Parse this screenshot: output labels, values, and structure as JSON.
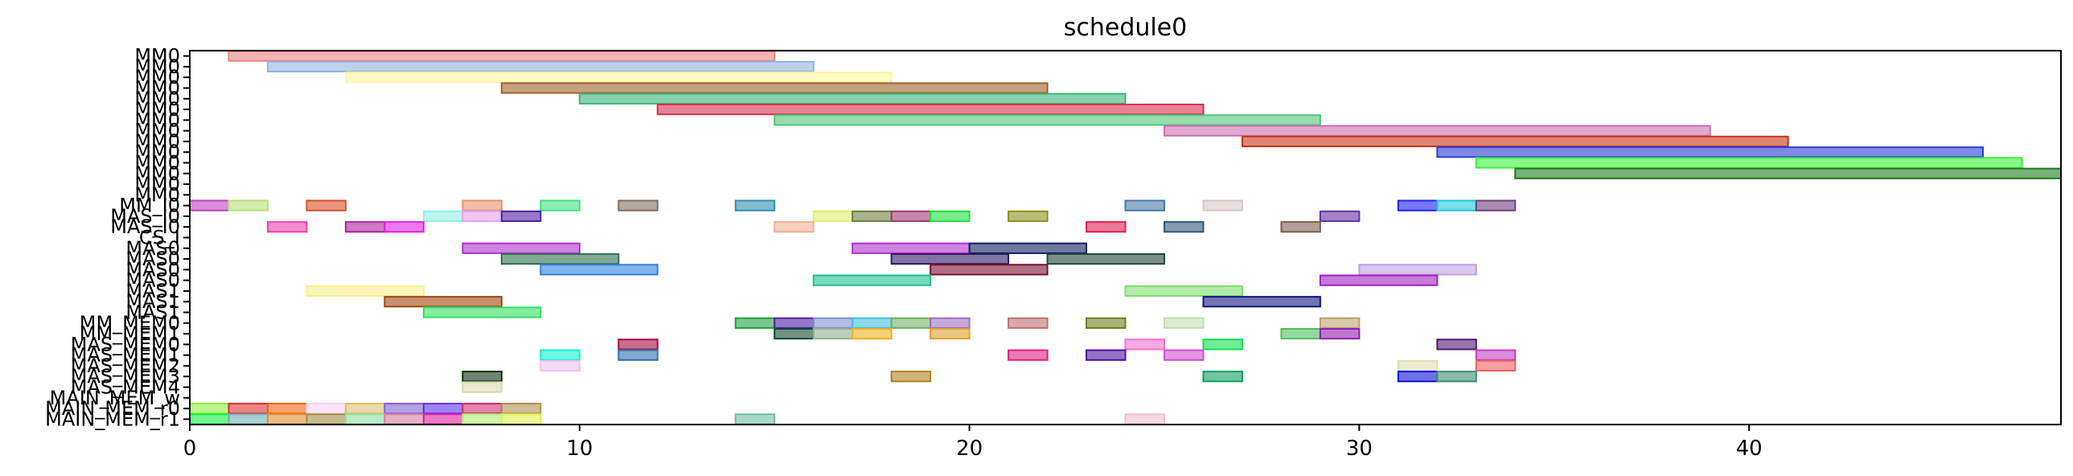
{
  "chart_data": {
    "type": "gantt",
    "title": "schedule0",
    "xlim": [
      0,
      48
    ],
    "xticks": [
      0,
      10,
      20,
      30,
      40
    ],
    "grid": false,
    "legend": "none",
    "rows": [
      "MM0",
      "MM0",
      "MM0",
      "MM0",
      "MM0",
      "MM0",
      "MM0",
      "MM0",
      "MM0",
      "MM0",
      "MM0",
      "MM0",
      "MM0",
      "MM0",
      "MM_I0",
      "MAS_I0",
      "MAS_I0",
      "CS_I",
      "MAS0",
      "MAS0",
      "MAS0",
      "MAS0",
      "MAS1",
      "MAS1",
      "MAS1",
      "MM_MEM0",
      "MM_MEM1",
      "MAS_MEM0",
      "MAS_MEM1",
      "MAS_MEM2",
      "MAS_MEM3",
      "MAS_MEM4",
      "MAIN_MEM_w",
      "MAIN_MEM_r0",
      "MAIN_MEM_r1"
    ],
    "tasks": [
      {
        "row": 0,
        "start": 1,
        "end": 15,
        "color": "#f08080"
      },
      {
        "row": 1,
        "start": 2,
        "end": 16,
        "color": "#8fb4e0"
      },
      {
        "row": 2,
        "start": 4,
        "end": 18,
        "color": "#fff5a0"
      },
      {
        "row": 3,
        "start": 8,
        "end": 22,
        "color": "#a0622a"
      },
      {
        "row": 4,
        "start": 10,
        "end": 24,
        "color": "#3cb37a"
      },
      {
        "row": 5,
        "start": 12,
        "end": 26,
        "color": "#d8304e"
      },
      {
        "row": 6,
        "start": 15,
        "end": 29,
        "color": "#50c878"
      },
      {
        "row": 7,
        "start": 25,
        "end": 39,
        "color": "#cc6fb0"
      },
      {
        "row": 8,
        "start": 27,
        "end": 41,
        "color": "#c83218"
      },
      {
        "row": 9,
        "start": 32,
        "end": 46,
        "color": "#2a3cd8"
      },
      {
        "row": 10,
        "start": 33,
        "end": 47,
        "color": "#3cf03c"
      },
      {
        "row": 11,
        "start": 34,
        "end": 48,
        "color": "#1e7a1e"
      },
      {
        "row": 14,
        "start": 0,
        "end": 1,
        "color": "#c040c0"
      },
      {
        "row": 14,
        "start": 1,
        "end": 2,
        "color": "#b8e07a"
      },
      {
        "row": 14,
        "start": 3,
        "end": 4,
        "color": "#d8502a"
      },
      {
        "row": 14,
        "start": 7,
        "end": 8,
        "color": "#e89070"
      },
      {
        "row": 14,
        "start": 9,
        "end": 10,
        "color": "#40e080"
      },
      {
        "row": 14,
        "start": 11,
        "end": 12,
        "color": "#807060"
      },
      {
        "row": 14,
        "start": 14,
        "end": 15,
        "color": "#3090b0"
      },
      {
        "row": 14,
        "start": 24,
        "end": 25,
        "color": "#4878a8"
      },
      {
        "row": 14,
        "start": 26,
        "end": 27,
        "color": "#d8c8c8"
      },
      {
        "row": 14,
        "start": 31,
        "end": 32,
        "color": "#2020f0"
      },
      {
        "row": 14,
        "start": 32,
        "end": 33,
        "color": "#20c8d8"
      },
      {
        "row": 14,
        "start": 33,
        "end": 34,
        "color": "#704080"
      },
      {
        "row": 15,
        "start": 6,
        "end": 7,
        "color": "#90f0e8"
      },
      {
        "row": 15,
        "start": 7,
        "end": 8,
        "color": "#e8a0f0"
      },
      {
        "row": 15,
        "start": 8,
        "end": 9,
        "color": "#5020a0"
      },
      {
        "row": 15,
        "start": 16,
        "end": 17,
        "color": "#e0f070"
      },
      {
        "row": 15,
        "start": 17,
        "end": 18,
        "color": "#708040"
      },
      {
        "row": 15,
        "start": 18,
        "end": 19,
        "color": "#a03870"
      },
      {
        "row": 15,
        "start": 19,
        "end": 20,
        "color": "#20e040"
      },
      {
        "row": 15,
        "start": 21,
        "end": 22,
        "color": "#909020"
      },
      {
        "row": 15,
        "start": 29,
        "end": 30,
        "color": "#6030a0"
      },
      {
        "row": 16,
        "start": 2,
        "end": 3,
        "color": "#f040b0"
      },
      {
        "row": 16,
        "start": 4,
        "end": 5,
        "color": "#b020a0"
      },
      {
        "row": 16,
        "start": 5,
        "end": 6,
        "color": "#e020e0"
      },
      {
        "row": 16,
        "start": 15,
        "end": 16,
        "color": "#f0b090"
      },
      {
        "row": 16,
        "start": 23,
        "end": 24,
        "color": "#e02050"
      },
      {
        "row": 16,
        "start": 25,
        "end": 26,
        "color": "#305878"
      },
      {
        "row": 16,
        "start": 28,
        "end": 29,
        "color": "#806050"
      },
      {
        "row": 18,
        "start": 7,
        "end": 10,
        "color": "#b030d0"
      },
      {
        "row": 18,
        "start": 17,
        "end": 20,
        "color": "#b030d0"
      },
      {
        "row": 18,
        "start": 20,
        "end": 23,
        "color": "#102060"
      },
      {
        "row": 19,
        "start": 8,
        "end": 11,
        "color": "#307050"
      },
      {
        "row": 19,
        "start": 18,
        "end": 21,
        "color": "#301868"
      },
      {
        "row": 19,
        "start": 22,
        "end": 25,
        "color": "#204838"
      },
      {
        "row": 20,
        "start": 9,
        "end": 12,
        "color": "#3080e0"
      },
      {
        "row": 20,
        "start": 19,
        "end": 22,
        "color": "#781030"
      },
      {
        "row": 20,
        "start": 30,
        "end": 33,
        "color": "#c0a0e0"
      },
      {
        "row": 21,
        "start": 16,
        "end": 19,
        "color": "#20c090"
      },
      {
        "row": 21,
        "start": 29,
        "end": 32,
        "color": "#a020c0"
      },
      {
        "row": 22,
        "start": 3,
        "end": 6,
        "color": "#f8f090"
      },
      {
        "row": 22,
        "start": 24,
        "end": 27,
        "color": "#80e070"
      },
      {
        "row": 23,
        "start": 5,
        "end": 8,
        "color": "#a04810"
      },
      {
        "row": 23,
        "start": 26,
        "end": 29,
        "color": "#101880"
      },
      {
        "row": 24,
        "start": 6,
        "end": 9,
        "color": "#30e060"
      },
      {
        "row": 25,
        "start": 14,
        "end": 15,
        "color": "#20a040"
      },
      {
        "row": 25,
        "start": 15,
        "end": 16,
        "color": "#5020a0"
      },
      {
        "row": 25,
        "start": 16,
        "end": 17,
        "color": "#8090d0"
      },
      {
        "row": 25,
        "start": 17,
        "end": 18,
        "color": "#40c0e0"
      },
      {
        "row": 25,
        "start": 18,
        "end": 19,
        "color": "#70b060"
      },
      {
        "row": 25,
        "start": 19,
        "end": 20,
        "color": "#a070c0"
      },
      {
        "row": 25,
        "start": 21,
        "end": 22,
        "color": "#c07070"
      },
      {
        "row": 25,
        "start": 23,
        "end": 24,
        "color": "#708020"
      },
      {
        "row": 25,
        "start": 25,
        "end": 26,
        "color": "#c0e0b0"
      },
      {
        "row": 25,
        "start": 29,
        "end": 30,
        "color": "#c0a070"
      },
      {
        "row": 26,
        "start": 15,
        "end": 16,
        "color": "#104830"
      },
      {
        "row": 26,
        "start": 16,
        "end": 17,
        "color": "#90b090"
      },
      {
        "row": 26,
        "start": 17,
        "end": 18,
        "color": "#f0b020"
      },
      {
        "row": 26,
        "start": 19,
        "end": 20,
        "color": "#e0a030"
      },
      {
        "row": 26,
        "start": 28,
        "end": 29,
        "color": "#50c060"
      },
      {
        "row": 26,
        "start": 29,
        "end": 30,
        "color": "#9020b0"
      },
      {
        "row": 27,
        "start": 11,
        "end": 12,
        "color": "#a01040"
      },
      {
        "row": 27,
        "start": 24,
        "end": 25,
        "color": "#f070d0"
      },
      {
        "row": 27,
        "start": 26,
        "end": 27,
        "color": "#10e050"
      },
      {
        "row": 27,
        "start": 32,
        "end": 33,
        "color": "#501870"
      },
      {
        "row": 28,
        "start": 9,
        "end": 10,
        "color": "#10f0d0"
      },
      {
        "row": 28,
        "start": 11,
        "end": 12,
        "color": "#3070b0"
      },
      {
        "row": 28,
        "start": 21,
        "end": 22,
        "color": "#e02080"
      },
      {
        "row": 28,
        "start": 23,
        "end": 24,
        "color": "#5010a0"
      },
      {
        "row": 28,
        "start": 25,
        "end": 26,
        "color": "#d050d0"
      },
      {
        "row": 28,
        "start": 33,
        "end": 34,
        "color": "#c040c0"
      },
      {
        "row": 29,
        "start": 9,
        "end": 10,
        "color": "#f0c0f0"
      },
      {
        "row": 29,
        "start": 31,
        "end": 32,
        "color": "#e0e0b0"
      },
      {
        "row": 29,
        "start": 33,
        "end": 34,
        "color": "#f06060"
      },
      {
        "row": 30,
        "start": 7,
        "end": 8,
        "color": "#103010"
      },
      {
        "row": 30,
        "start": 18,
        "end": 19,
        "color": "#b08020"
      },
      {
        "row": 30,
        "start": 26,
        "end": 27,
        "color": "#10a060"
      },
      {
        "row": 30,
        "start": 31,
        "end": 32,
        "color": "#1010e0"
      },
      {
        "row": 30,
        "start": 32,
        "end": 33,
        "color": "#409070"
      },
      {
        "row": 31,
        "start": 7,
        "end": 8,
        "color": "#d8d8b0"
      },
      {
        "row": 33,
        "start": 0,
        "end": 1,
        "color": "#90f040"
      },
      {
        "row": 33,
        "start": 1,
        "end": 2,
        "color": "#e03030"
      },
      {
        "row": 33,
        "start": 2,
        "end": 3,
        "color": "#f06010"
      },
      {
        "row": 33,
        "start": 3,
        "end": 4,
        "color": "#f8d0f8"
      },
      {
        "row": 33,
        "start": 4,
        "end": 5,
        "color": "#e0c070"
      },
      {
        "row": 33,
        "start": 5,
        "end": 6,
        "color": "#8060d0"
      },
      {
        "row": 33,
        "start": 6,
        "end": 7,
        "color": "#6030f0"
      },
      {
        "row": 33,
        "start": 7,
        "end": 8,
        "color": "#d03070"
      },
      {
        "row": 33,
        "start": 8,
        "end": 9,
        "color": "#b09050"
      },
      {
        "row": 34,
        "start": 0,
        "end": 1,
        "color": "#10f040"
      },
      {
        "row": 34,
        "start": 1,
        "end": 2,
        "color": "#70b0b0"
      },
      {
        "row": 34,
        "start": 2,
        "end": 3,
        "color": "#e09030"
      },
      {
        "row": 34,
        "start": 3,
        "end": 4,
        "color": "#a09040"
      },
      {
        "row": 34,
        "start": 4,
        "end": 5,
        "color": "#90e0a0"
      },
      {
        "row": 34,
        "start": 5,
        "end": 6,
        "color": "#d080a0"
      },
      {
        "row": 34,
        "start": 6,
        "end": 7,
        "color": "#e020a0"
      },
      {
        "row": 34,
        "start": 7,
        "end": 8,
        "color": "#b0f070"
      },
      {
        "row": 34,
        "start": 8,
        "end": 9,
        "color": "#e0f050"
      },
      {
        "row": 34,
        "start": 14,
        "end": 15,
        "color": "#70c0a0"
      },
      {
        "row": 34,
        "start": 24,
        "end": 25,
        "color": "#f0c0d0"
      }
    ]
  }
}
